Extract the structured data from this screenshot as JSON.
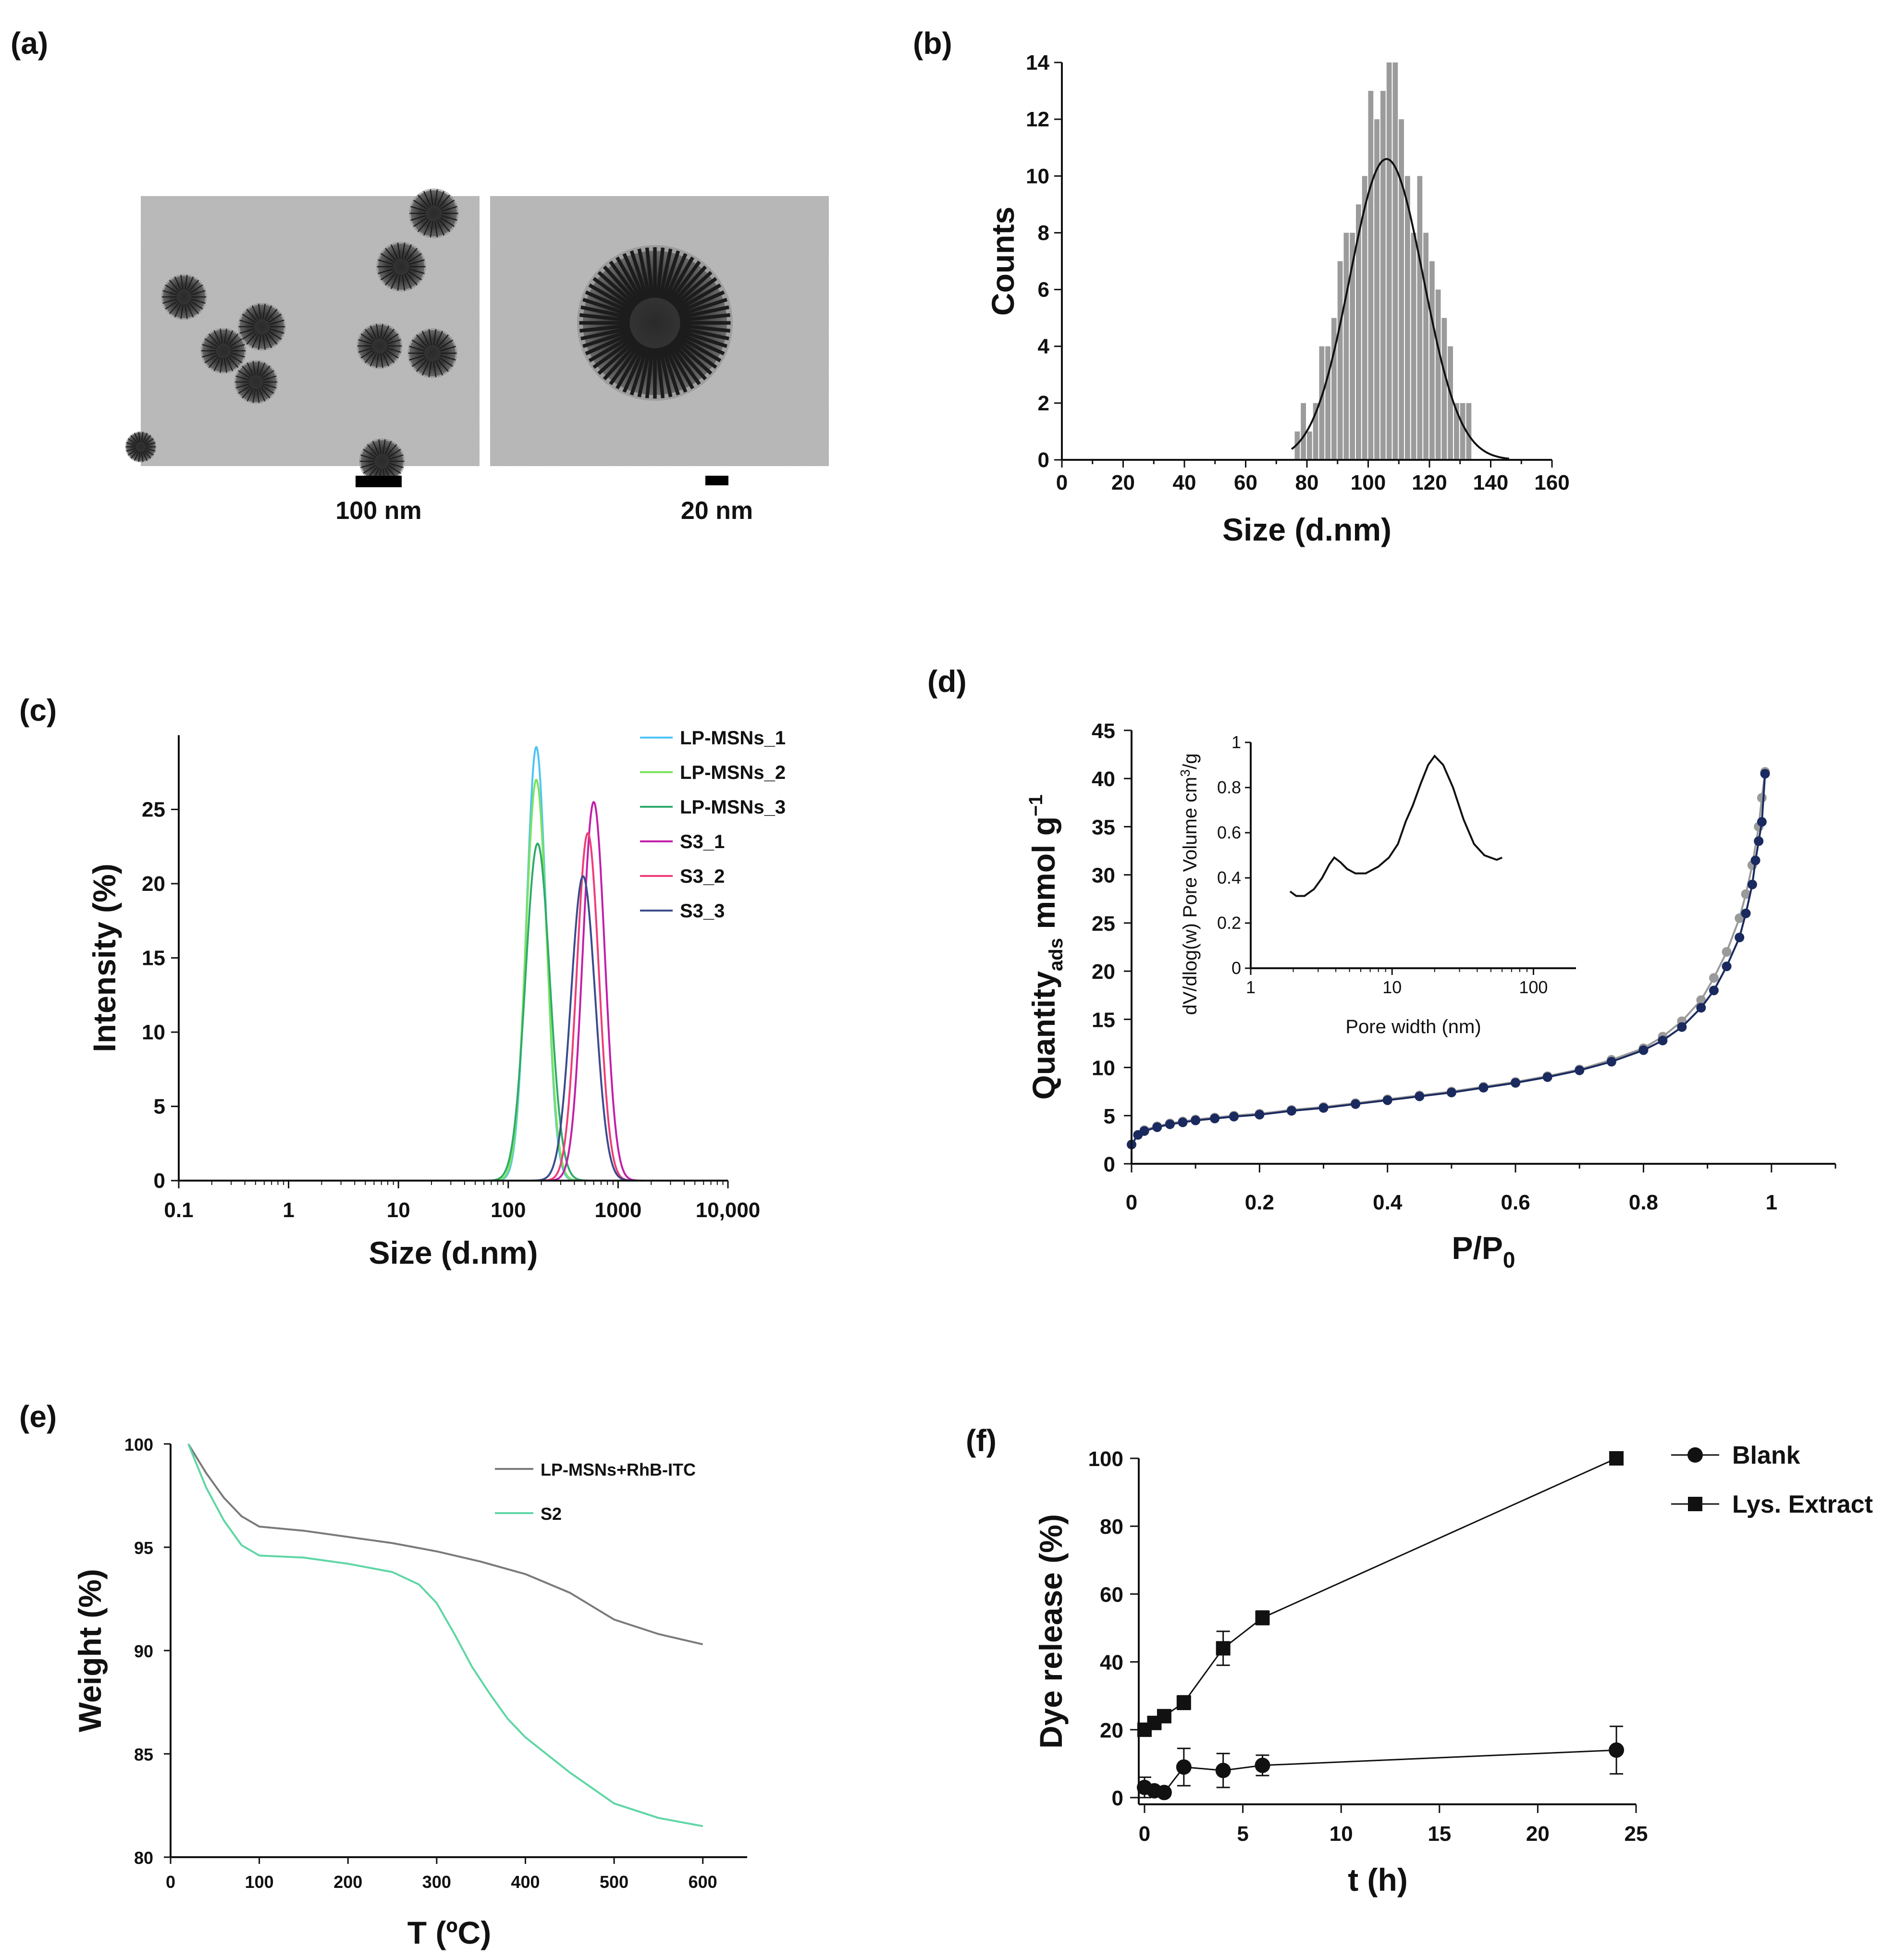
{
  "panels": {
    "a": "(a)",
    "b": "(b)",
    "c": "(c)",
    "d": "(d)",
    "e": "(e)",
    "f": "(f)"
  },
  "tem": {
    "scale_left": "100 nm",
    "scale_right": "20 nm"
  },
  "chart_data": [
    {
      "id": "b",
      "type": "bar",
      "title": "",
      "xlabel": "Size (d.nm)",
      "ylabel": "Counts",
      "xlim": [
        0,
        160
      ],
      "ylim": [
        0,
        14
      ],
      "xticks": [
        "0",
        "20",
        "40",
        "60",
        "80",
        "100",
        "120",
        "140",
        "160"
      ],
      "yticks": [
        "0",
        "2",
        "4",
        "6",
        "8",
        "10",
        "12",
        "14"
      ],
      "bin_width": 2,
      "bins": [
        76,
        78,
        80,
        82,
        84,
        86,
        88,
        90,
        92,
        94,
        96,
        98,
        100,
        102,
        104,
        106,
        108,
        110,
        112,
        114,
        116,
        118,
        120,
        122,
        124,
        126,
        128,
        130,
        132
      ],
      "counts": [
        1,
        2,
        1,
        2,
        4,
        4,
        5,
        7,
        8,
        8,
        9,
        10,
        13,
        12,
        13,
        14,
        14,
        12,
        10,
        8,
        10,
        8,
        7,
        6,
        5,
        4,
        2,
        2,
        2
      ],
      "fit": {
        "type": "gaussian",
        "mean": 106,
        "sigma": 12,
        "peak": 10.6
      }
    },
    {
      "id": "c",
      "type": "line",
      "xscale": "log",
      "xlabel": "Size (d.nm)",
      "ylabel": "Intensity (%)",
      "xlim": [
        0.1,
        10000
      ],
      "ylim": [
        0,
        30
      ],
      "xticks": [
        "0.1",
        "1",
        "10",
        "100",
        "1000",
        "10,000"
      ],
      "yticks": [
        "0",
        "5",
        "10",
        "15",
        "20",
        "25"
      ],
      "legend_position": "top-right",
      "series": [
        {
          "name": "LP-MSNs_1",
          "color": "#4fc3f7",
          "peak_x": 180,
          "peak_y": 29.2,
          "log_sigma": 0.09
        },
        {
          "name": "LP-MSNs_2",
          "color": "#7be35a",
          "peak_x": 180,
          "peak_y": 27.0,
          "log_sigma": 0.095
        },
        {
          "name": "LP-MSNs_3",
          "color": "#2eab6a",
          "peak_x": 185,
          "peak_y": 22.7,
          "log_sigma": 0.11
        },
        {
          "name": "S3_1",
          "color": "#c21fa8",
          "peak_x": 600,
          "peak_y": 25.5,
          "log_sigma": 0.1
        },
        {
          "name": "S3_2",
          "color": "#f03c78",
          "peak_x": 530,
          "peak_y": 23.4,
          "log_sigma": 0.1
        },
        {
          "name": "S3_3",
          "color": "#3a4c8c",
          "peak_x": 480,
          "peak_y": 20.5,
          "log_sigma": 0.11
        }
      ]
    },
    {
      "id": "d",
      "type": "scatter",
      "xlabel": "P/P0",
      "xlabel_main": "P/P",
      "xlabel_sub": "0",
      "ylabel": "Quantityads mmol g-1",
      "ylabel_main": "Quantity",
      "ylabel_sub": "ads",
      "ylabel_unit": "mmol g",
      "ylabel_sup": "−1",
      "xlim": [
        0,
        1.1
      ],
      "ylim": [
        0,
        45
      ],
      "xticks": [
        "0",
        "0.2",
        "0.4",
        "0.6",
        "0.8",
        "1"
      ],
      "yticks": [
        "0",
        "5",
        "10",
        "15",
        "20",
        "25",
        "30",
        "35",
        "40",
        "45"
      ],
      "series": [
        {
          "name": "Adsorption",
          "color": "#1a2a5e",
          "x": [
            0.0,
            0.01,
            0.02,
            0.04,
            0.06,
            0.08,
            0.1,
            0.13,
            0.16,
            0.2,
            0.25,
            0.3,
            0.35,
            0.4,
            0.45,
            0.5,
            0.55,
            0.6,
            0.65,
            0.7,
            0.75,
            0.8,
            0.83,
            0.86,
            0.89,
            0.91,
            0.93,
            0.95,
            0.96,
            0.97,
            0.975,
            0.98,
            0.985,
            0.99
          ],
          "y": [
            2.0,
            3.0,
            3.4,
            3.8,
            4.1,
            4.3,
            4.5,
            4.7,
            4.9,
            5.1,
            5.5,
            5.8,
            6.2,
            6.6,
            7.0,
            7.4,
            7.9,
            8.4,
            9.0,
            9.7,
            10.6,
            11.8,
            12.8,
            14.2,
            16.2,
            18.0,
            20.5,
            23.5,
            26.0,
            29.0,
            31.5,
            33.5,
            35.5,
            40.5
          ]
        },
        {
          "name": "Desorption",
          "color": "#9a9a9a",
          "x": [
            0.99,
            0.985,
            0.98,
            0.97,
            0.96,
            0.95,
            0.93,
            0.91,
            0.89,
            0.86,
            0.83,
            0.8,
            0.75,
            0.7,
            0.65,
            0.6,
            0.55,
            0.5,
            0.45,
            0.4,
            0.35,
            0.3,
            0.25,
            0.2,
            0.16,
            0.13,
            0.1,
            0.08,
            0.06,
            0.04,
            0.02
          ],
          "y": [
            40.7,
            38.0,
            35.0,
            31.0,
            28.0,
            25.5,
            22.0,
            19.3,
            17.0,
            14.8,
            13.2,
            12.0,
            10.8,
            9.8,
            9.1,
            8.5,
            8.0,
            7.5,
            7.1,
            6.7,
            6.3,
            5.9,
            5.6,
            5.2,
            5.0,
            4.8,
            4.6,
            4.4,
            4.2,
            3.9,
            3.5
          ]
        }
      ],
      "inset": {
        "type": "line",
        "xscale": "log",
        "xlabel": "Pore width (nm)",
        "ylabel": "dV/dlog(w) Pore Volume cm3/g",
        "ylabel_text": "dV/dlog(w) Pore Volume cm",
        "ylabel_sup": "3",
        "ylabel_tail": "/g",
        "xlim": [
          1,
          200
        ],
        "ylim": [
          0,
          1
        ],
        "xticks": [
          "1",
          "10",
          "100"
        ],
        "yticks": [
          "0",
          "0.2",
          "0.4",
          "0.6",
          "0.8",
          "1"
        ],
        "x": [
          1.9,
          2.1,
          2.4,
          2.8,
          3.2,
          3.6,
          3.9,
          4.3,
          4.8,
          5.5,
          6.5,
          8,
          9.5,
          11,
          12.5,
          14,
          16,
          18,
          20,
          23,
          27,
          32,
          38,
          45,
          55,
          60
        ],
        "y": [
          0.34,
          0.32,
          0.32,
          0.35,
          0.4,
          0.46,
          0.49,
          0.47,
          0.44,
          0.42,
          0.42,
          0.45,
          0.49,
          0.55,
          0.65,
          0.72,
          0.82,
          0.9,
          0.94,
          0.9,
          0.8,
          0.66,
          0.55,
          0.5,
          0.48,
          0.49
        ]
      }
    },
    {
      "id": "e",
      "type": "line",
      "xlabel": "T (ºC)",
      "ylabel": "Weight (%)",
      "xlim": [
        0,
        650
      ],
      "ylim": [
        80,
        100
      ],
      "xticks": [
        "0",
        "100",
        "200",
        "300",
        "400",
        "500",
        "600"
      ],
      "yticks": [
        "80",
        "85",
        "90",
        "95",
        "100"
      ],
      "legend_position": "top-right",
      "series": [
        {
          "name": "LP-MSNs+RhB-ITC",
          "color": "#7a7a7a",
          "x": [
            20,
            40,
            60,
            80,
            100,
            150,
            200,
            250,
            300,
            350,
            400,
            450,
            500,
            550,
            600
          ],
          "y": [
            100,
            98.6,
            97.4,
            96.5,
            96.0,
            95.8,
            95.5,
            95.2,
            94.8,
            94.3,
            93.7,
            92.8,
            91.5,
            90.8,
            90.3
          ]
        },
        {
          "name": "S2",
          "color": "#5fd6a4",
          "x": [
            20,
            40,
            60,
            80,
            100,
            150,
            200,
            250,
            280,
            300,
            320,
            340,
            360,
            380,
            400,
            450,
            500,
            550,
            600
          ],
          "y": [
            100,
            97.9,
            96.3,
            95.1,
            94.6,
            94.5,
            94.2,
            93.8,
            93.2,
            92.3,
            90.8,
            89.2,
            87.9,
            86.7,
            85.8,
            84.1,
            82.6,
            81.9,
            81.5
          ]
        }
      ]
    },
    {
      "id": "f",
      "type": "line",
      "xlabel": "t (h)",
      "ylabel": "Dye release (%)",
      "xlim": [
        0,
        25
      ],
      "ylim": [
        0,
        100
      ],
      "xticks": [
        "0",
        "5",
        "10",
        "15",
        "20",
        "25"
      ],
      "yticks": [
        "0",
        "20",
        "40",
        "60",
        "80",
        "100"
      ],
      "legend_position": "top-right",
      "series": [
        {
          "name": "Blank",
          "marker": "circle",
          "x": [
            0,
            0.5,
            1,
            2,
            4,
            6,
            24
          ],
          "y": [
            3,
            2,
            1.5,
            9,
            8,
            9.5,
            14
          ],
          "err": [
            3,
            1,
            1,
            5.5,
            5,
            3,
            7
          ]
        },
        {
          "name": "Lys. Extract",
          "marker": "square",
          "x": [
            0,
            0.5,
            1,
            2,
            4,
            6,
            24
          ],
          "y": [
            20,
            22,
            24,
            28,
            44,
            53,
            100
          ],
          "err": [
            0,
            0,
            0,
            2,
            5,
            2,
            0
          ]
        }
      ]
    }
  ]
}
